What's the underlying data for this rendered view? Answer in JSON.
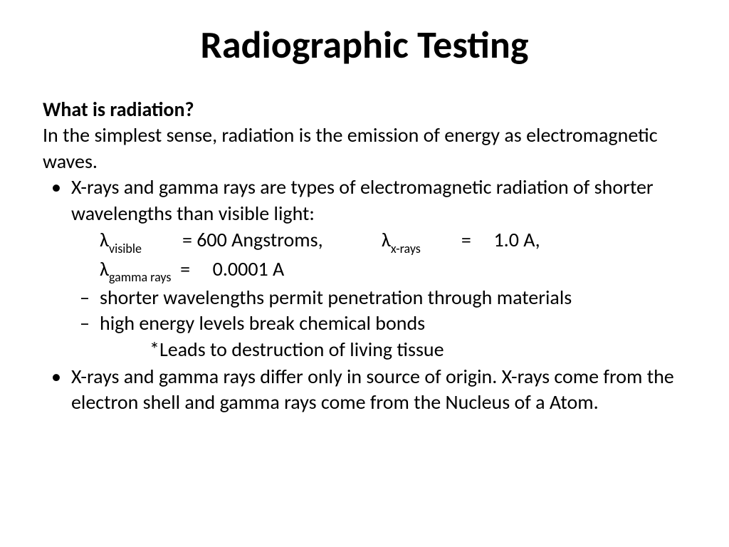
{
  "title": "Radiographic Testing",
  "subheading": "What is radiation?",
  "intro": "In the simplest sense,  radiation is the emission of energy as electromagnetic waves.",
  "bullet1": "X-rays and gamma rays are types of electromagnetic radiation of shorter wavelengths than visible light:",
  "wl": {
    "lambda": "λ",
    "visible_sub": "visible",
    "visible_val": "= 600 Angstroms,",
    "xrays_sub": "x-rays",
    "xrays_val": "=     1.0 A,",
    "gamma_sub": "gamma rays",
    "gamma_val": "=     0.0001 A"
  },
  "sub1": "shorter wavelengths permit penetration through materials",
  "sub2": "high energy levels break chemical bonds",
  "note": "*Leads to destruction of living tissue",
  "bullet2": "X-rays and gamma rays differ only in source of origin.  X-rays come from the electron shell and gamma rays come from the Nucleus of a Atom.",
  "colors": {
    "text": "#000000",
    "background": "#ffffff"
  },
  "typography": {
    "title_fontsize": 54,
    "body_fontsize": 28,
    "sub_fontsize": 18,
    "font_family": "Calibri"
  }
}
